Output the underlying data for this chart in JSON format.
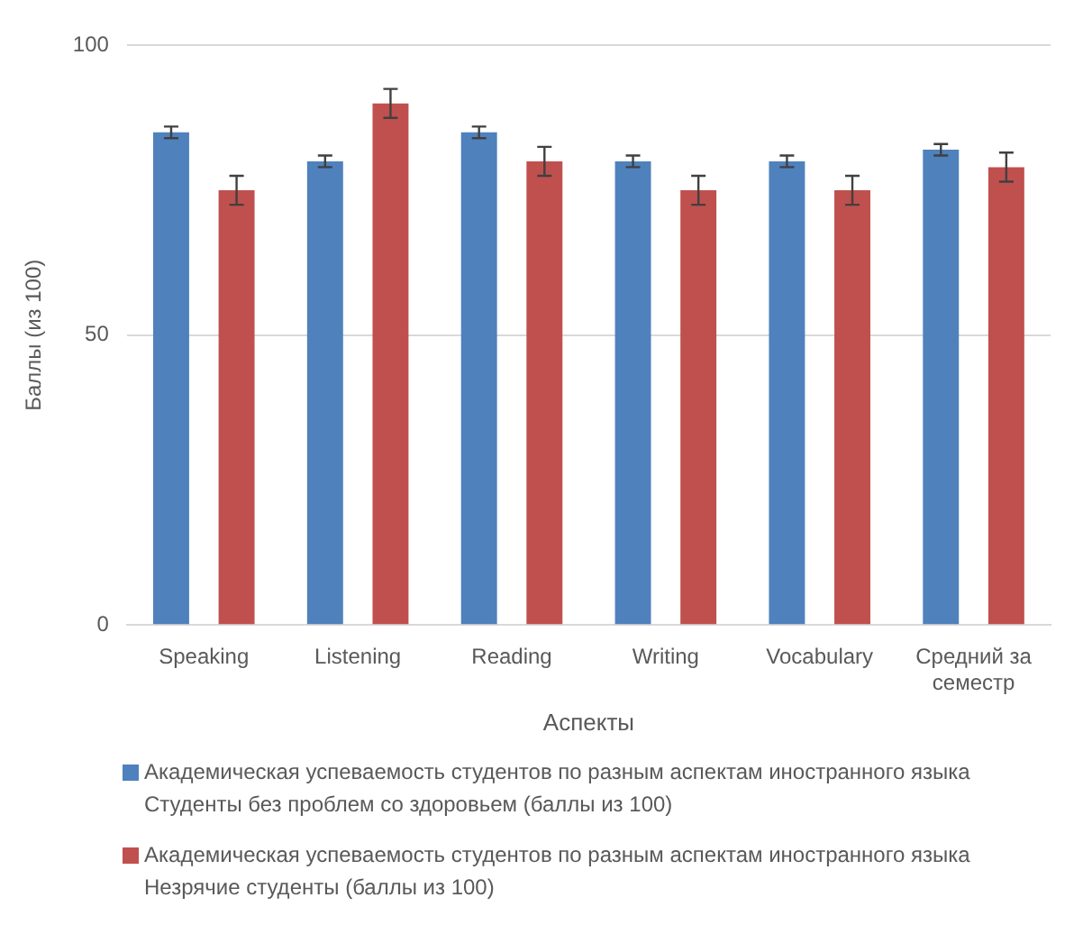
{
  "chart_data": {
    "type": "bar",
    "xlabel": "Аспекты",
    "ylabel": "Баллы (из 100)",
    "categories": [
      "Speaking",
      "Listening",
      "Reading",
      "Writing",
      "Vocabulary",
      "Средний за семестр"
    ],
    "series": [
      {
        "name": "Академическая успеваемость студентов по разным аспектам иностранного языка Студенты без проблем со здоровьем (баллы из 100)",
        "color": "#4f81bd",
        "values": [
          85,
          80,
          85,
          80,
          80,
          82
        ],
        "errors": [
          1,
          1,
          1,
          1,
          1,
          1
        ]
      },
      {
        "name": "Академическая успеваемость студентов по разным аспектам иностранного языка Незрячие студенты (баллы из 100)",
        "color": "#c0504d",
        "values": [
          75,
          90,
          80,
          75,
          75,
          79
        ],
        "errors": [
          2.5,
          2.5,
          2.5,
          2.5,
          2.5,
          2.5
        ]
      }
    ],
    "ylim": [
      0,
      100
    ],
    "yticks": [
      0,
      50,
      100
    ],
    "grid": "y",
    "legend": "bottom"
  }
}
